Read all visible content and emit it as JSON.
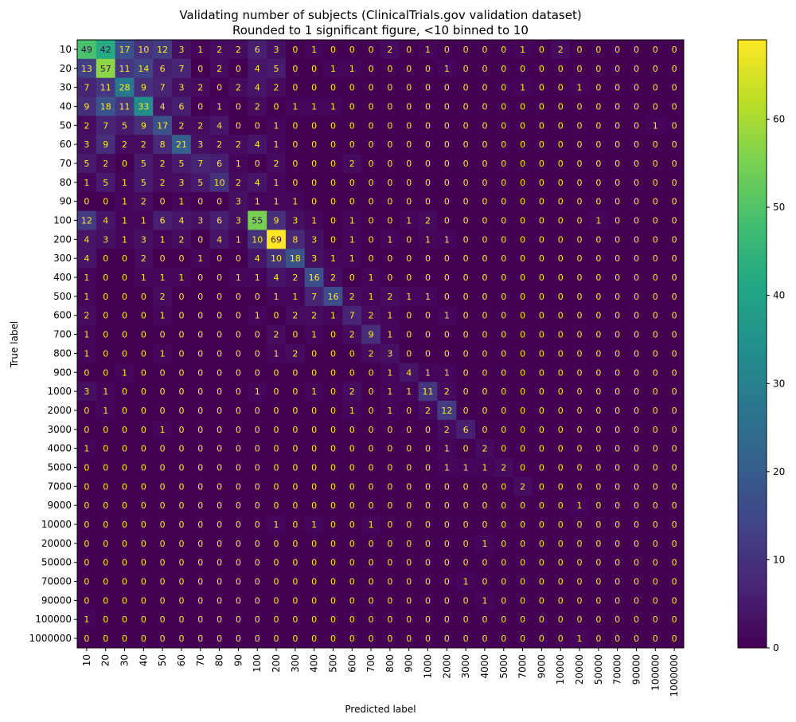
{
  "chart_data": {
    "type": "heatmap",
    "title": "Validating number of subjects (ClinicalTrials.gov validation dataset)",
    "subtitle": "Rounded to 1 significant figure, <10 binned to 10",
    "xlabel": "Predicted label",
    "ylabel": "True label",
    "labels": [
      "10",
      "20",
      "30",
      "40",
      "50",
      "60",
      "70",
      "80",
      "90",
      "100",
      "200",
      "300",
      "400",
      "500",
      "600",
      "700",
      "800",
      "900",
      "1000",
      "2000",
      "3000",
      "4000",
      "5000",
      "7000",
      "9000",
      "10000",
      "20000",
      "50000",
      "70000",
      "90000",
      "100000",
      "1000000"
    ],
    "colorbar": {
      "min": 0,
      "max": 69,
      "ticks": [
        0,
        10,
        20,
        30,
        40,
        50,
        60
      ]
    },
    "colormap": [
      "#440154",
      "#482475",
      "#414487",
      "#355f8d",
      "#2a788e",
      "#21918c",
      "#22a884",
      "#44bf70",
      "#7ad151",
      "#bddf26",
      "#fde725"
    ],
    "values": [
      [
        49,
        42,
        17,
        10,
        12,
        3,
        1,
        2,
        2,
        6,
        3,
        0,
        1,
        0,
        0,
        0,
        2,
        0,
        1,
        0,
        0,
        0,
        0,
        1,
        0,
        2,
        0,
        0,
        0,
        0,
        0,
        0
      ],
      [
        13,
        57,
        11,
        14,
        6,
        7,
        0,
        2,
        0,
        4,
        5,
        0,
        0,
        1,
        1,
        0,
        0,
        0,
        0,
        1,
        0,
        0,
        0,
        0,
        0,
        0,
        0,
        0,
        0,
        0,
        0,
        0
      ],
      [
        7,
        11,
        28,
        9,
        7,
        3,
        2,
        0,
        2,
        4,
        2,
        0,
        0,
        0,
        0,
        0,
        0,
        0,
        0,
        0,
        0,
        0,
        0,
        1,
        0,
        0,
        1,
        0,
        0,
        0,
        0,
        0
      ],
      [
        9,
        18,
        11,
        33,
        4,
        6,
        0,
        1,
        0,
        2,
        0,
        1,
        1,
        1,
        0,
        0,
        0,
        0,
        0,
        0,
        0,
        0,
        0,
        0,
        0,
        0,
        0,
        0,
        0,
        0,
        0,
        0
      ],
      [
        2,
        7,
        5,
        9,
        17,
        2,
        2,
        4,
        0,
        0,
        1,
        0,
        0,
        0,
        0,
        0,
        0,
        0,
        0,
        0,
        0,
        0,
        0,
        0,
        0,
        0,
        0,
        0,
        0,
        0,
        1,
        0
      ],
      [
        3,
        9,
        2,
        2,
        8,
        21,
        3,
        2,
        2,
        4,
        1,
        0,
        0,
        0,
        0,
        0,
        0,
        0,
        0,
        0,
        0,
        0,
        0,
        0,
        0,
        0,
        0,
        0,
        0,
        0,
        0,
        0
      ],
      [
        5,
        2,
        0,
        5,
        2,
        5,
        7,
        6,
        1,
        0,
        2,
        0,
        0,
        0,
        2,
        0,
        0,
        0,
        0,
        0,
        0,
        0,
        0,
        0,
        0,
        0,
        0,
        0,
        0,
        0,
        0,
        0
      ],
      [
        1,
        5,
        1,
        5,
        2,
        3,
        5,
        10,
        2,
        4,
        1,
        0,
        0,
        0,
        0,
        0,
        0,
        0,
        0,
        0,
        0,
        0,
        0,
        0,
        0,
        0,
        0,
        0,
        0,
        0,
        0,
        0
      ],
      [
        0,
        0,
        1,
        2,
        0,
        1,
        0,
        0,
        3,
        1,
        1,
        1,
        0,
        0,
        0,
        0,
        0,
        0,
        0,
        0,
        0,
        0,
        0,
        0,
        0,
        0,
        0,
        0,
        0,
        0,
        0,
        0
      ],
      [
        12,
        4,
        1,
        1,
        6,
        4,
        3,
        6,
        3,
        55,
        9,
        3,
        1,
        0,
        1,
        0,
        0,
        1,
        2,
        0,
        0,
        0,
        0,
        0,
        0,
        0,
        0,
        1,
        0,
        0,
        0,
        0
      ],
      [
        4,
        3,
        1,
        3,
        1,
        2,
        0,
        4,
        1,
        10,
        69,
        8,
        3,
        0,
        1,
        0,
        1,
        0,
        1,
        1,
        0,
        0,
        0,
        0,
        0,
        0,
        0,
        0,
        0,
        0,
        0,
        0
      ],
      [
        4,
        0,
        0,
        2,
        0,
        0,
        1,
        0,
        0,
        4,
        10,
        18,
        3,
        1,
        1,
        0,
        0,
        0,
        0,
        0,
        0,
        0,
        0,
        0,
        0,
        0,
        0,
        0,
        0,
        0,
        0,
        0
      ],
      [
        1,
        0,
        0,
        1,
        1,
        1,
        0,
        0,
        1,
        1,
        4,
        2,
        16,
        2,
        0,
        1,
        0,
        0,
        0,
        0,
        0,
        0,
        0,
        0,
        0,
        0,
        0,
        0,
        0,
        0,
        0,
        0
      ],
      [
        1,
        0,
        0,
        0,
        2,
        0,
        0,
        0,
        0,
        0,
        1,
        1,
        7,
        16,
        2,
        1,
        2,
        1,
        1,
        0,
        0,
        0,
        0,
        0,
        0,
        0,
        0,
        0,
        0,
        0,
        0,
        0
      ],
      [
        2,
        0,
        0,
        0,
        1,
        0,
        0,
        0,
        0,
        1,
        0,
        2,
        2,
        1,
        7,
        2,
        1,
        0,
        0,
        1,
        0,
        0,
        0,
        0,
        0,
        0,
        0,
        0,
        0,
        0,
        0,
        0
      ],
      [
        1,
        0,
        0,
        0,
        0,
        0,
        0,
        0,
        0,
        0,
        2,
        0,
        1,
        0,
        2,
        9,
        1,
        0,
        0,
        0,
        0,
        0,
        0,
        0,
        0,
        0,
        0,
        0,
        0,
        0,
        0,
        0
      ],
      [
        1,
        0,
        0,
        0,
        1,
        0,
        0,
        0,
        0,
        0,
        1,
        2,
        0,
        0,
        0,
        2,
        3,
        0,
        0,
        0,
        0,
        0,
        0,
        0,
        0,
        0,
        0,
        0,
        0,
        0,
        0,
        0
      ],
      [
        0,
        0,
        1,
        0,
        0,
        0,
        0,
        0,
        0,
        0,
        0,
        0,
        0,
        0,
        0,
        0,
        1,
        4,
        1,
        1,
        0,
        0,
        0,
        0,
        0,
        0,
        0,
        0,
        0,
        0,
        0,
        0
      ],
      [
        3,
        1,
        0,
        0,
        0,
        0,
        0,
        0,
        0,
        1,
        0,
        0,
        1,
        0,
        2,
        0,
        1,
        1,
        11,
        2,
        0,
        0,
        0,
        0,
        0,
        0,
        0,
        0,
        0,
        0,
        0,
        0
      ],
      [
        0,
        1,
        0,
        0,
        0,
        0,
        0,
        0,
        0,
        0,
        0,
        0,
        0,
        0,
        1,
        0,
        1,
        0,
        2,
        12,
        0,
        0,
        0,
        0,
        0,
        0,
        0,
        0,
        0,
        0,
        0,
        0
      ],
      [
        0,
        0,
        0,
        0,
        1,
        0,
        0,
        0,
        0,
        0,
        0,
        0,
        0,
        0,
        0,
        0,
        0,
        0,
        0,
        2,
        6,
        0,
        0,
        0,
        0,
        0,
        0,
        0,
        0,
        0,
        0,
        0
      ],
      [
        1,
        0,
        0,
        0,
        0,
        0,
        0,
        0,
        0,
        0,
        0,
        0,
        0,
        0,
        0,
        0,
        0,
        0,
        0,
        1,
        0,
        2,
        0,
        0,
        0,
        0,
        0,
        0,
        0,
        0,
        0,
        0
      ],
      [
        0,
        0,
        0,
        0,
        0,
        0,
        0,
        0,
        0,
        0,
        0,
        0,
        0,
        0,
        0,
        0,
        0,
        0,
        0,
        1,
        1,
        1,
        2,
        0,
        0,
        0,
        0,
        0,
        0,
        0,
        0,
        0
      ],
      [
        0,
        0,
        0,
        0,
        0,
        0,
        0,
        0,
        0,
        0,
        0,
        0,
        0,
        0,
        0,
        0,
        0,
        0,
        0,
        0,
        0,
        0,
        0,
        2,
        0,
        0,
        0,
        0,
        0,
        0,
        0,
        0
      ],
      [
        0,
        0,
        0,
        0,
        0,
        0,
        0,
        0,
        0,
        0,
        0,
        0,
        0,
        0,
        0,
        0,
        0,
        0,
        0,
        0,
        0,
        0,
        0,
        0,
        0,
        0,
        1,
        0,
        0,
        0,
        0,
        0
      ],
      [
        0,
        0,
        0,
        0,
        0,
        0,
        0,
        0,
        0,
        0,
        1,
        0,
        1,
        0,
        0,
        1,
        0,
        0,
        0,
        0,
        0,
        0,
        0,
        0,
        0,
        0,
        0,
        0,
        0,
        0,
        0,
        0
      ],
      [
        0,
        0,
        0,
        0,
        0,
        0,
        0,
        0,
        0,
        0,
        0,
        0,
        0,
        0,
        0,
        0,
        0,
        0,
        0,
        0,
        0,
        1,
        0,
        0,
        0,
        0,
        0,
        0,
        0,
        0,
        0,
        0
      ],
      [
        0,
        0,
        0,
        0,
        0,
        0,
        0,
        0,
        0,
        0,
        0,
        0,
        0,
        0,
        0,
        0,
        0,
        0,
        0,
        0,
        0,
        0,
        0,
        0,
        0,
        0,
        0,
        0,
        0,
        0,
        0,
        0
      ],
      [
        0,
        0,
        0,
        0,
        0,
        0,
        0,
        0,
        0,
        0,
        0,
        0,
        0,
        0,
        0,
        0,
        0,
        0,
        0,
        0,
        1,
        0,
        0,
        0,
        0,
        0,
        0,
        0,
        0,
        0,
        0,
        0
      ],
      [
        0,
        0,
        0,
        0,
        0,
        0,
        0,
        0,
        0,
        0,
        0,
        0,
        0,
        0,
        0,
        0,
        0,
        0,
        0,
        0,
        0,
        1,
        0,
        0,
        0,
        0,
        0,
        0,
        0,
        0,
        0,
        0
      ],
      [
        1,
        0,
        0,
        0,
        0,
        0,
        0,
        0,
        0,
        0,
        0,
        0,
        0,
        0,
        0,
        0,
        0,
        0,
        0,
        0,
        0,
        0,
        0,
        0,
        0,
        0,
        0,
        0,
        0,
        0,
        0,
        0
      ],
      [
        0,
        0,
        0,
        0,
        0,
        0,
        0,
        0,
        0,
        0,
        0,
        0,
        0,
        0,
        0,
        0,
        0,
        0,
        0,
        0,
        0,
        0,
        0,
        0,
        0,
        0,
        1,
        0,
        0,
        0,
        0,
        0
      ]
    ]
  }
}
